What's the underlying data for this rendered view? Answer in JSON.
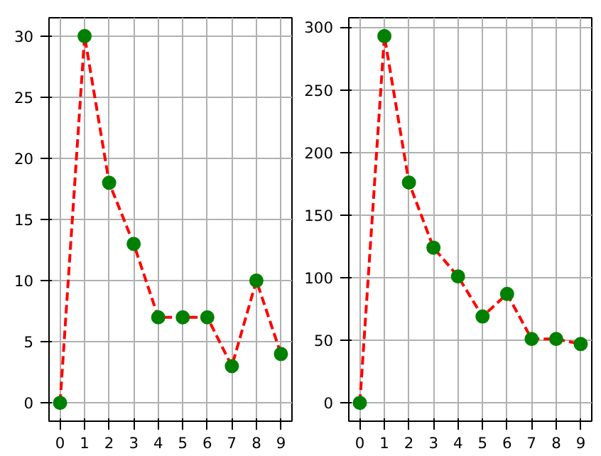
{
  "chart_data": [
    {
      "type": "line",
      "x": [
        0,
        1,
        2,
        3,
        4,
        5,
        6,
        7,
        8,
        9
      ],
      "series": [
        {
          "color": "#ff0000",
          "colors": [
            "#008000",
            "#008000",
            "#008000",
            "#008000",
            "#008000",
            "#008000",
            "#008000",
            "#008000",
            "#008000",
            "#008000"
          ],
          "values": [
            0,
            30,
            18,
            13,
            7,
            7,
            7,
            3,
            10,
            4
          ]
        }
      ],
      "marker": "circle",
      "line_style": "dashed",
      "grid": true,
      "xlim": [
        -0.45,
        9.45
      ],
      "ylim": [
        -1.5,
        31.5
      ],
      "xticks": [
        0,
        1,
        2,
        3,
        4,
        5,
        6,
        7,
        8,
        9
      ],
      "yticks": [
        0,
        5,
        10,
        15,
        20,
        25,
        30
      ]
    },
    {
      "type": "line",
      "x": [
        0,
        1,
        2,
        3,
        4,
        5,
        6,
        7,
        8,
        9
      ],
      "series": [
        {
          "color": "#ff0000",
          "colors": [
            "#008000",
            "#008000",
            "#008000",
            "#008000",
            "#008000",
            "#008000",
            "#008000",
            "#008000",
            "#008000",
            "#008000"
          ],
          "values": [
            0,
            293,
            176,
            124,
            101,
            69,
            87,
            51,
            51,
            47
          ]
        }
      ],
      "marker": "circle",
      "line_style": "dashed",
      "grid": true,
      "xlim": [
        -0.45,
        9.45
      ],
      "ylim": [
        -14.65,
        307.65
      ],
      "xticks": [
        0,
        1,
        2,
        3,
        4,
        5,
        6,
        7,
        8,
        9
      ],
      "yticks": [
        0,
        50,
        100,
        150,
        200,
        250,
        300
      ]
    }
  ]
}
